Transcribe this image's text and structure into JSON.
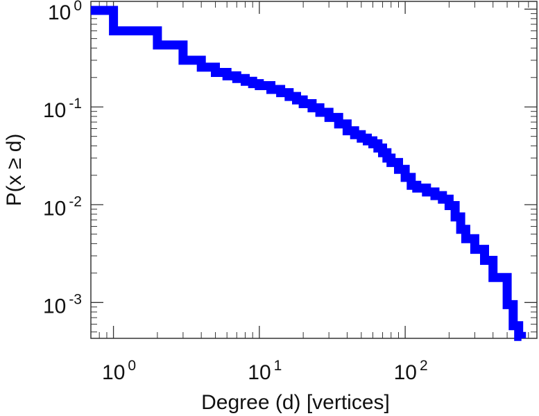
{
  "chart_data": {
    "type": "line",
    "title": "",
    "xlabel": "Degree (d) [vertices]",
    "ylabel": "P(x ≥ d)",
    "xscale": "log",
    "yscale": "log",
    "xlim": [
      0.7,
      800
    ],
    "ylim": [
      0.00043,
      1.2
    ],
    "xticks": [
      {
        "value": 1,
        "base": "10",
        "exp": "0"
      },
      {
        "value": 10,
        "base": "10",
        "exp": "1"
      },
      {
        "value": 100,
        "base": "10",
        "exp": "2"
      }
    ],
    "yticks": [
      {
        "value": 1,
        "base": "10",
        "exp": "0"
      },
      {
        "value": 0.1,
        "base": "10",
        "exp": "-1"
      },
      {
        "value": 0.01,
        "base": "10",
        "exp": "-2"
      },
      {
        "value": 0.001,
        "base": "10",
        "exp": "-3"
      }
    ],
    "grid": false,
    "legend": "none",
    "series": [
      {
        "step": "post",
        "color": "#0000ff",
        "x": [
          0.7,
          1,
          2,
          3,
          4,
          5,
          6,
          7,
          8,
          9,
          10,
          12,
          14,
          16,
          18,
          20,
          23,
          26,
          30,
          35,
          40,
          45,
          50,
          55,
          60,
          65,
          70,
          75,
          80,
          90,
          100,
          110,
          120,
          140,
          160,
          180,
          200,
          220,
          240,
          260,
          300,
          350,
          400,
          450,
          500,
          550,
          600
        ],
        "y": [
          0.97,
          0.6,
          0.43,
          0.3,
          0.255,
          0.225,
          0.208,
          0.195,
          0.183,
          0.173,
          0.165,
          0.151,
          0.14,
          0.128,
          0.118,
          0.108,
          0.098,
          0.088,
          0.078,
          0.067,
          0.057,
          0.052,
          0.048,
          0.045,
          0.042,
          0.038,
          0.034,
          0.03,
          0.027,
          0.023,
          0.019,
          0.0158,
          0.0148,
          0.0135,
          0.0124,
          0.0114,
          0.0098,
          0.0075,
          0.0056,
          0.0045,
          0.0035,
          0.0027,
          0.0018,
          0.0018,
          0.00095,
          0.00058,
          0.00045
        ]
      }
    ]
  }
}
